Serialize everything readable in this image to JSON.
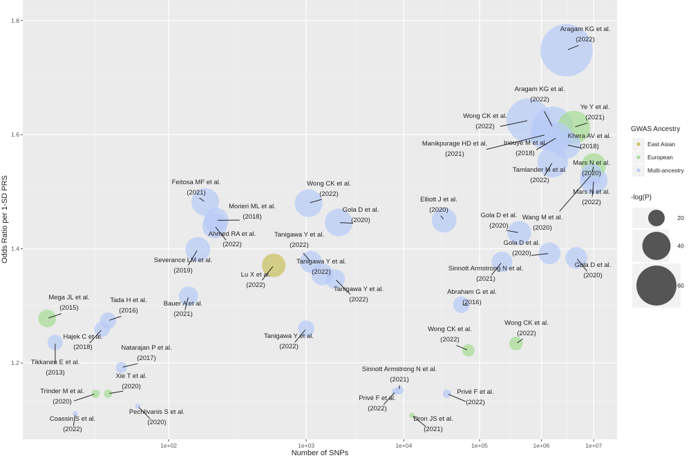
{
  "chart_data": {
    "type": "scatter",
    "xscale": "log-log",
    "x_label": "Number of SNPs",
    "y_label": "Odds Ratio per 1-SD PRS",
    "xlim": [
      20,
      31600000
    ],
    "ylim": [
      1.066,
      1.836
    ],
    "xticks": [
      {
        "value": 100,
        "label": "1e+02"
      },
      {
        "value": 1000,
        "label": "1e+03"
      },
      {
        "value": 10000,
        "label": "1e+04"
      },
      {
        "value": 100000,
        "label": "1e+05"
      },
      {
        "value": 1000000,
        "label": "1e+06"
      },
      {
        "value": 10000000,
        "label": "1e+07"
      }
    ],
    "yticks": [
      1.2,
      1.4,
      1.6,
      1.8
    ],
    "grid": true,
    "legend_title": "GWAS Ancestry",
    "size_legend": {
      "title": "-log(P)",
      "values": [
        20,
        40,
        60
      ]
    },
    "series": [
      {
        "name": "East Asian",
        "color": "#c9c060",
        "x": [
          532
        ],
        "values": [
          1.371
        ],
        "sizes": [
          32
        ],
        "labels": [
          "Lu X et al."
        ],
        "years": [
          "(2022)"
        ]
      },
      {
        "name": "European",
        "color": "#a6dc94",
        "x": [
          4000000,
          10000000,
          25,
          47,
          41,
          69000,
          370000,
          12500
        ],
        "values": [
          1.613,
          1.546,
          1.278,
          1.146,
          1.146,
          1.222,
          1.234,
          1.108
        ],
        "sizes": [
          48,
          34,
          22,
          6,
          6,
          13,
          15,
          1
        ],
        "labels": [
          "Ye Y et al.",
          "Mars N et al.",
          "Mega JL et al.",
          "Xie T et al.",
          "Trinder M et al.",
          "Wong CK et al.",
          "Wong CK et al.",
          "Dron JS et al."
        ],
        "years": [
          "(2021)",
          "(2020)",
          "(2015)",
          "(2020)",
          "(2020)",
          "(2022)",
          "(2022)",
          "(2021)"
        ]
      },
      {
        "name": "Multi-ancestry",
        "color": "#b7cbf7",
        "x": [
          2900000,
          1600000,
          600000,
          1200000,
          1900000,
          2900000,
          1600000,
          10000000,
          9000000,
          169,
          200,
          195,
          1050,
          2000,
          151,
          1100,
          1400,
          1850,
          132,
          1000,
          47,
          44,
          27,
          55,
          67,
          33,
          32000,
          420000,
          1400000,
          4500000,
          220000,
          55000,
          8900,
          8000,
          35000
        ],
        "values": [
          1.748,
          1.613,
          1.625,
          1.6,
          1.595,
          1.582,
          1.552,
          1.52,
          1.53,
          1.482,
          1.45,
          1.44,
          1.48,
          1.446,
          1.399,
          1.377,
          1.355,
          1.347,
          1.317,
          1.26,
          1.274,
          1.259,
          1.236,
          1.192,
          1.124,
          1.111,
          1.45,
          1.428,
          1.392,
          1.384,
          1.377,
          1.302,
          1.152,
          1.15,
          1.146
        ],
        "sizes": [
          81,
          62,
          67,
          44,
          44,
          39,
          44,
          39,
          29,
          39,
          34,
          34,
          39,
          39,
          34,
          29,
          29,
          25,
          25,
          20,
          20,
          18,
          18,
          11,
          1,
          1,
          34,
          32,
          29,
          29,
          27,
          20,
          6,
          4,
          6
        ],
        "labels": [
          "Aragam KG et al.",
          "Aragam KG et al.",
          "Wong CK et al.",
          "Manikpurage HD et al.",
          "Inouye M et al.",
          "Khera AV et al.",
          "Tamlander M et al.",
          "Mars N et al.",
          "Wang M et al.",
          "Feitosa MF et al.",
          "Morieri ML et al.",
          "Ahmed RA et al.",
          "Wong CK et al.",
          "Gola D et al.",
          "Severance LM et al.",
          "Tanigawa Y et al.",
          "Tanigawa Y et al.",
          "Tanigawa Y et al.",
          "Bauer A et al.",
          "Tanigawa Y et al.",
          "Tada H et al.",
          "Hajek C et al.",
          "Tikkanen E et al.",
          "Natarajan P et al.",
          "Pechlivanis S et al.",
          "Coassin S et al.",
          "Elliott J et al.",
          "Gola D et al.",
          "Gola D et al.",
          "Gola D et al.",
          "Sinnott Armstrong N et al.",
          "Abraham G et al.",
          "Sinnott Armstrong N et al.",
          "Privé F et al.",
          "Privé F et al."
        ],
        "years": [
          "(2022)",
          "(2022)",
          "(2022)",
          "(2021)",
          "(2018)",
          "(2018)",
          "(2022)",
          "(2022)",
          "(2020)",
          "(2021)",
          "(2018)",
          "(2022)",
          "(2022)",
          "(2020)",
          "(2019)",
          "(2022)",
          "(2022)",
          "(2022)",
          "(2021)",
          "(2022)",
          "(2016)",
          "(2018)",
          "(2013)",
          "(2017)",
          "(2020)",
          "(2022)",
          "(2020)",
          "(2020)",
          "(2020)",
          "(2020)",
          "(2021)",
          "(2016)",
          "(2021)",
          "(2022)",
          "(2022)"
        ]
      }
    ]
  }
}
